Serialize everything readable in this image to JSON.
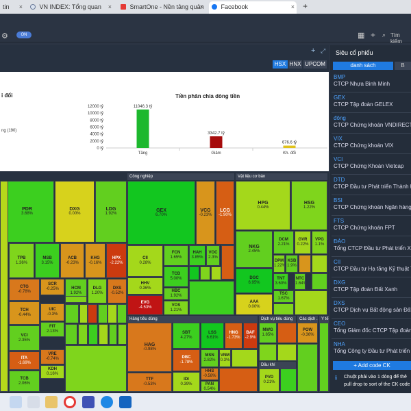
{
  "browser": {
    "tabs": [
      {
        "label": "tin",
        "icon": "page-icon"
      },
      {
        "label": "VN INDEX: Tổng quan",
        "icon": "vn-icon"
      },
      {
        "label": "SmartOne - Nền tảng quản lý tài",
        "icon": "smartone-icon"
      },
      {
        "label": "Facebook",
        "icon": "facebook-icon"
      }
    ],
    "new_tab": "+"
  },
  "toolbar": {
    "search_placeholder": "Tìm kiếm",
    "toggle": "ON"
  },
  "exchanges": [
    "HSX",
    "HNX",
    "UPCOM"
  ],
  "left_title": "i đổi",
  "left_legend": "ng (190)",
  "chart_data": {
    "type": "bar",
    "title": "Tiền phân chia dòng tiền",
    "categories": [
      "Tăng",
      "Giảm",
      "Kh. đổi"
    ],
    "values": [
      11046.3,
      3342.7,
      676.6
    ],
    "value_labels": [
      "11046.3 tỷ",
      "3342.7 tỷ",
      "676.6 tỷ"
    ],
    "colors": [
      "#1db82e",
      "#a60c0c",
      "#e0c21b"
    ],
    "yticks": [
      "12000 tỷ",
      "10000 tỷ",
      "8000 tỷ",
      "6000 tỷ",
      "4000 tỷ",
      "2000 tỷ",
      "0 tỷ"
    ],
    "ylim": [
      0,
      12000
    ]
  },
  "sectors": {
    "cong_nghiep": "Công nghiệp",
    "vat_lieu": "Vật liệu cơ bản",
    "hang_tieu_dung": "Hàng tiêu dùng",
    "dich_vu": "Dịch vụ tiêu dùng",
    "cac_dich": "Các dịch ...",
    "y_te": "Y tế",
    "dau_khi": "Dầu khí"
  },
  "tiles": [
    {
      "c": "PDR",
      "v": "3.68%"
    },
    {
      "c": "DXG",
      "v": "0.00%"
    },
    {
      "c": "LDG",
      "v": "1.92%"
    },
    {
      "c": "TPB",
      "v": "1.36%"
    },
    {
      "c": "MSB",
      "v": "3.15%"
    },
    {
      "c": "ACB",
      "v": "-0.23%"
    },
    {
      "c": "KHG",
      "v": "-0.16%"
    },
    {
      "c": "HPX",
      "v": "-2.22%"
    },
    {
      "c": "CTG",
      "v": "-0.78%"
    },
    {
      "c": "SCR",
      "v": "-0.25%"
    },
    {
      "c": "HCM",
      "v": "1.92%"
    },
    {
      "c": "DLG",
      "v": "1.20%"
    },
    {
      "c": "DXS",
      "v": "-0.52%"
    },
    {
      "c": "TCH",
      "v": "-0.44%"
    },
    {
      "c": "UIC",
      "v": "-0.3%"
    },
    {
      "c": "VCI",
      "v": "2.35%"
    },
    {
      "c": "FIT",
      "v": "2.13%"
    },
    {
      "c": "ITA",
      "v": "-1.69%"
    },
    {
      "c": "VRE",
      "v": "-0.74%"
    },
    {
      "c": "TCB",
      "v": "2.06%"
    },
    {
      "c": "KDH",
      "v": "0.16%"
    },
    {
      "c": "GEX",
      "v": "6.70%"
    },
    {
      "c": "VCG",
      "v": "-0.23%"
    },
    {
      "c": "LCG",
      "v": "-1.90%"
    },
    {
      "c": "CII",
      "v": "0.28%"
    },
    {
      "c": "FCN",
      "v": "1.65%"
    },
    {
      "c": "HAH",
      "v": "3.85%"
    },
    {
      "c": "VOC",
      "v": "2.3%"
    },
    {
      "c": "HHV",
      "v": "0.36%"
    },
    {
      "c": "TCD",
      "v": "5.00%"
    },
    {
      "c": "HBC",
      "v": "1.92%"
    },
    {
      "c": "EVG",
      "v": "-4.53%"
    },
    {
      "c": "VOS",
      "v": "1.21%"
    },
    {
      "c": "HPG",
      "v": "0.44%"
    },
    {
      "c": "HSG",
      "v": "1.22%"
    },
    {
      "c": "NKG",
      "v": "2.45%"
    },
    {
      "c": "DCM",
      "v": "2.21%"
    },
    {
      "c": "GVR",
      "v": "0.22%"
    },
    {
      "c": "VPG",
      "v": "1.1%"
    },
    {
      "c": "DPM",
      "v": "1.22%"
    },
    {
      "c": "KSB",
      "v": "1.9%"
    },
    {
      "c": "DGC",
      "v": "6.95%"
    },
    {
      "c": "TNT",
      "v": "3.60%"
    },
    {
      "c": "NTC",
      "v": "1.64%"
    },
    {
      "c": "TSC",
      "v": "1.67%"
    },
    {
      "c": "AAA",
      "v": "0.00%"
    },
    {
      "c": "HAG",
      "v": "-0.98%"
    },
    {
      "c": "SBT",
      "v": "4.27%"
    },
    {
      "c": "LSS",
      "v": "6.61%"
    },
    {
      "c": "HNG",
      "v": "-1.73%"
    },
    {
      "c": "BAF",
      "v": "-2.9%"
    },
    {
      "c": "DBC",
      "v": "-1.78%"
    },
    {
      "c": "MSN",
      "v": "2.82%"
    },
    {
      "c": "VNM",
      "v": "0.3%"
    },
    {
      "c": "TTF",
      "v": "-0.53%"
    },
    {
      "c": "IDI",
      "v": "0.39%"
    },
    {
      "c": "HHS",
      "v": "-0.58%"
    },
    {
      "c": "PAN",
      "v": "0.54%"
    },
    {
      "c": "MWG",
      "v": "1.85%"
    },
    {
      "c": "POW",
      "v": "-0.36%"
    },
    {
      "c": "PVD",
      "v": "0.21%"
    }
  ],
  "sidebar": {
    "title": "Siêu cổ phiếu",
    "tab_active": "danh sách",
    "tab_other": "B",
    "items": [
      {
        "code": "BMP",
        "name": "CTCP Nhựa Bình Minh"
      },
      {
        "code": "GEX",
        "name": "CTCP Tập đoàn GELEX"
      },
      {
        "code": "đông",
        "name": "CTCP Chứng khoán VNDIRECT"
      },
      {
        "code": "VIX",
        "name": "CTCP Chứng khoán VIX"
      },
      {
        "code": "VCI",
        "name": "CTCP Chứng Khoán Vietcap"
      },
      {
        "code": "DTD",
        "name": "CTCP Đầu tư Phát triển Thành Đạt"
      },
      {
        "code": "BSI",
        "name": "CTCP Chứng khoán Ngân hàng Đầu"
      },
      {
        "code": "FTS",
        "name": "CTCP Chứng khoán FPT"
      },
      {
        "code": "ĐÀO",
        "name": "Tổng CTCP Đầu tư Phát triển Xây d"
      },
      {
        "code": "CII",
        "name": "CTCP Đầu tư Hạ tầng Kỹ thuật Thành"
      },
      {
        "code": "DXG",
        "name": "CTCP Tập đoàn Đất Xanh"
      },
      {
        "code": "DXS",
        "name": "CTCP Dịch vụ Bất động sản Đất Xan"
      },
      {
        "code": "CEO",
        "name": "Tổng Giám đốc CTCP Tập đoàn"
      },
      {
        "code": "NHA",
        "name": "Tổng Công ty Đầu tư Phát triển Nhà"
      }
    ],
    "add_button": "+ Add code CK",
    "hint": "Chuột phải vào 1 dòng để thê",
    "hint2": "pull drop to sort of the CK code"
  }
}
